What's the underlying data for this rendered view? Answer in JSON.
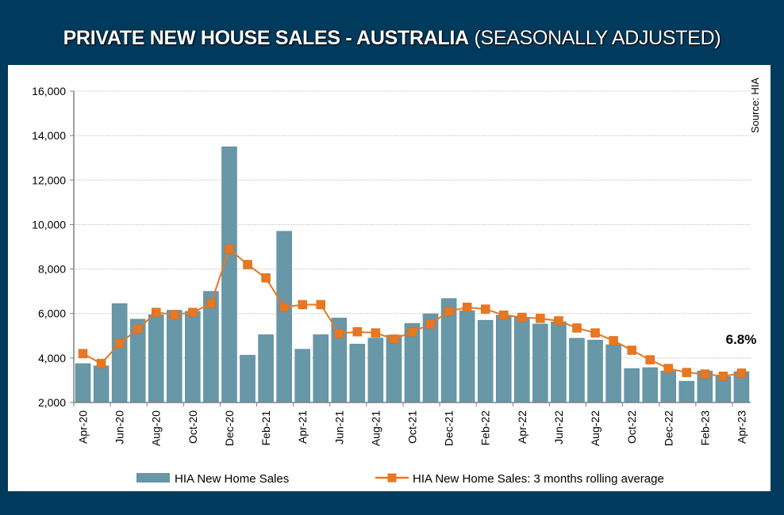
{
  "chart_data": {
    "type": "bar",
    "title": "PRIVATE NEW HOUSE SALES -  AUSTRALIA",
    "subtitle": "(SEASONALLY ADJUSTED)",
    "source": "Source: HIA",
    "annotation": "6.8%",
    "xlabel": "",
    "ylabel": "",
    "ylim": [
      2000,
      16000
    ],
    "yticks": [
      2000,
      4000,
      6000,
      8000,
      10000,
      12000,
      14000,
      16000
    ],
    "ytick_labels": [
      "2,000",
      "4,000",
      "6,000",
      "8,000",
      "10,000",
      "12,000",
      "14,000",
      "16,000"
    ],
    "grid": true,
    "legend_position": "bottom",
    "categories": [
      "Apr-20",
      "May-20",
      "Jun-20",
      "Jul-20",
      "Aug-20",
      "Sep-20",
      "Oct-20",
      "Nov-20",
      "Dec-20",
      "Jan-21",
      "Feb-21",
      "Mar-21",
      "Apr-21",
      "May-21",
      "Jun-21",
      "Jul-21",
      "Aug-21",
      "Sep-21",
      "Oct-21",
      "Nov-21",
      "Dec-21",
      "Jan-22",
      "Feb-22",
      "Mar-22",
      "Apr-22",
      "May-22",
      "Jun-22",
      "Jul-22",
      "Aug-22",
      "Sep-22",
      "Oct-22",
      "Nov-22",
      "Dec-22",
      "Jan-23",
      "Feb-23",
      "Mar-23",
      "Apr-23"
    ],
    "xtick_labels": [
      "Apr-20",
      "Jun-20",
      "Aug-20",
      "Oct-20",
      "Dec-20",
      "Feb-21",
      "Apr-21",
      "Jun-21",
      "Aug-21",
      "Oct-21",
      "Dec-21",
      "Feb-22",
      "Apr-22",
      "Jun-22",
      "Aug-22",
      "Oct-22",
      "Dec-22",
      "Feb-23",
      "Apr-23"
    ],
    "series": [
      {
        "name": "HIA New Home Sales",
        "type": "bar",
        "color": "#6897a8",
        "values": [
          3750,
          3650,
          6450,
          5750,
          5950,
          6150,
          6100,
          7000,
          13500,
          4130,
          5050,
          9700,
          4400,
          5050,
          5800,
          4630,
          4900,
          5030,
          5560,
          5990,
          6680,
          6130,
          5700,
          5930,
          5830,
          5530,
          5630,
          4890,
          4810,
          4600,
          3530,
          3570,
          3420,
          2960,
          3420,
          3170,
          3390
        ]
      },
      {
        "name": "HIA New Home Sales: 3 months rolling average",
        "type": "line",
        "color": "#e87722",
        "values": [
          4200,
          3750,
          4650,
          5300,
          6050,
          5950,
          6050,
          6450,
          8900,
          8200,
          7600,
          6280,
          6400,
          6400,
          5100,
          5180,
          5130,
          4850,
          5170,
          5530,
          6100,
          6280,
          6200,
          5930,
          5830,
          5780,
          5670,
          5350,
          5130,
          4780,
          4350,
          3920,
          3530,
          3350,
          3280,
          3180,
          3320
        ]
      }
    ]
  }
}
